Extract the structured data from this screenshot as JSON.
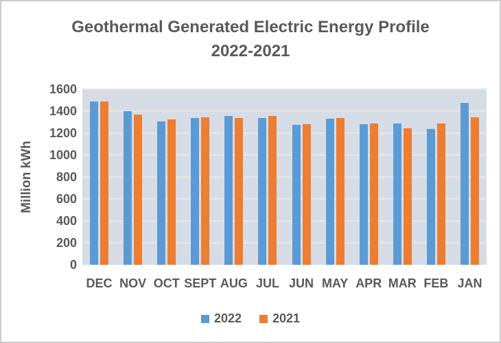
{
  "title": {
    "line1": "Geothermal Generated Electric Energy Profile",
    "line2": "2022-2021"
  },
  "colors": {
    "series_2022": "#5B9BD5",
    "series_2021": "#ED7D31",
    "plot_background": "#D6DCE5",
    "gridline": "#e9e5e5",
    "text": "#595959",
    "frame_border": "#cccccc"
  },
  "chart_data": {
    "type": "bar",
    "title": "Geothermal Generated Electric Energy Profile 2022-2021",
    "categories": [
      "DEC",
      "NOV",
      "OCT",
      "SEPT",
      "AUG",
      "JUL",
      "JUN",
      "MAY",
      "APR",
      "MAR",
      "FEB",
      "JAN"
    ],
    "series": [
      {
        "name": "2022",
        "color": "#5B9BD5",
        "values": [
          1490,
          1400,
          1305,
          1335,
          1355,
          1340,
          1275,
          1330,
          1280,
          1290,
          1240,
          1475
        ]
      },
      {
        "name": "2021",
        "color": "#ED7D31",
        "values": [
          1490,
          1370,
          1325,
          1345,
          1335,
          1355,
          1280,
          1340,
          1290,
          1245,
          1290,
          1345
        ]
      }
    ],
    "xlabel": "",
    "ylabel": "Million kWh",
    "ylim": [
      0,
      1600
    ],
    "ytick_step": 200,
    "grid": true,
    "legend_position": "bottom"
  }
}
